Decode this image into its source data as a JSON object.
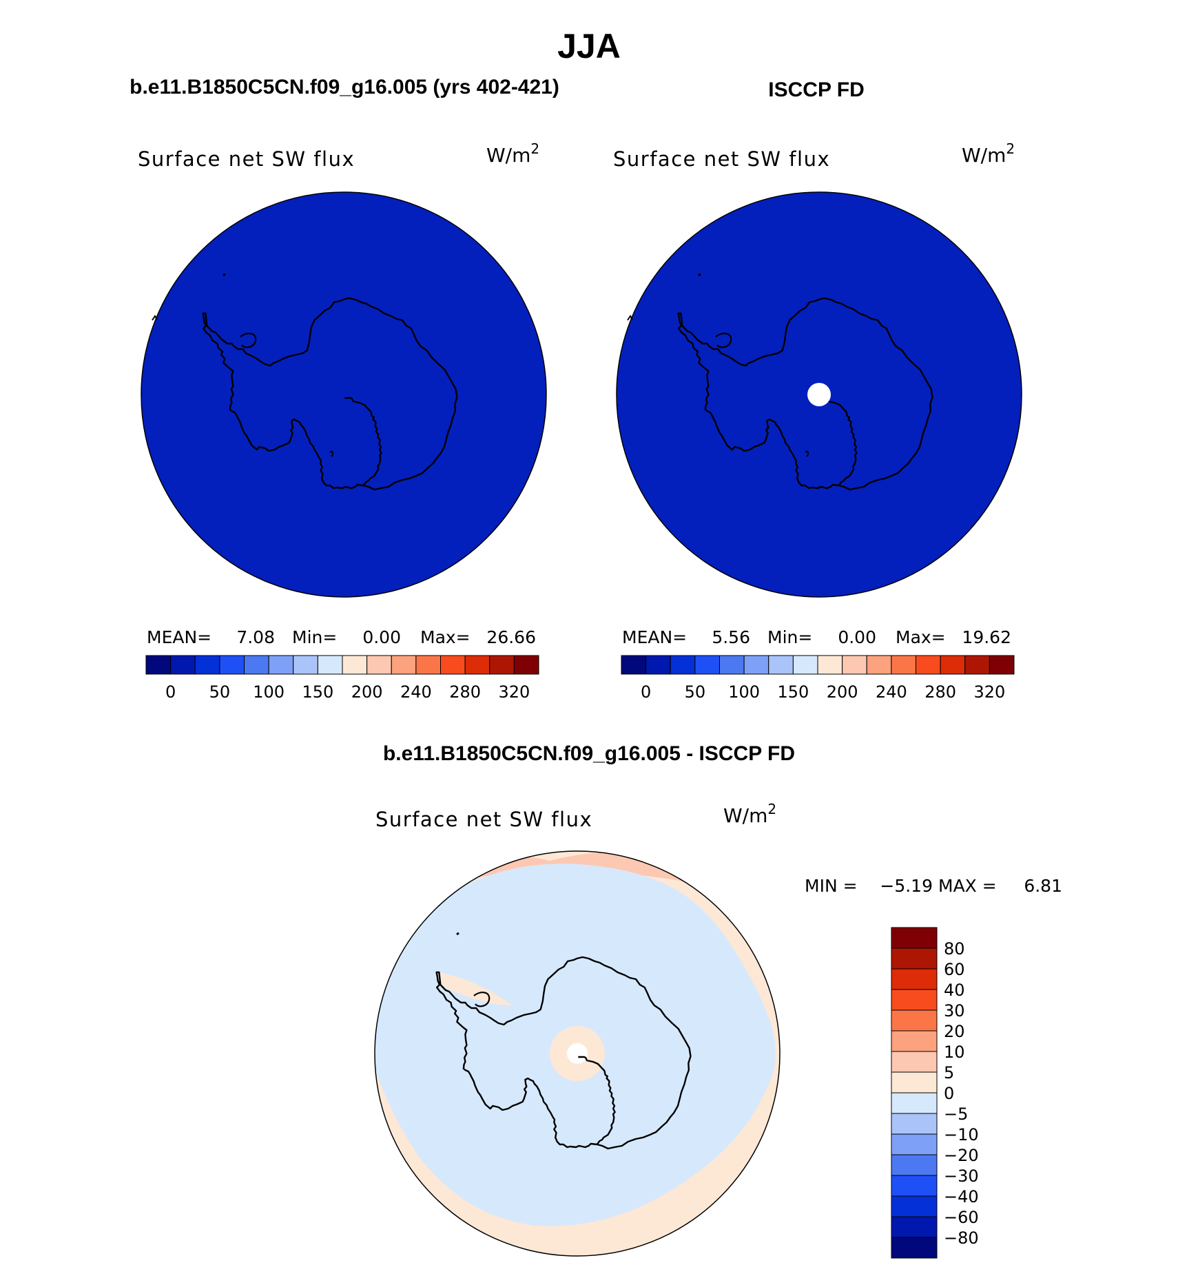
{
  "page": {
    "title": "JJA",
    "diff_title": "b.e11.B1850C5CN.f09_g16.005 - ISCCP FD"
  },
  "colors": {
    "abs_levels": [
      "#00087c",
      "#0018ae",
      "#0430d8",
      "#1e50f6",
      "#4c78f2",
      "#7ea0f6",
      "#aac4fa",
      "#d6e8fc",
      "#fde8d6",
      "#fcc8b2",
      "#fca27e",
      "#fa7648",
      "#f84c1e",
      "#dc2c08",
      "#ae1604",
      "#7e0004"
    ],
    "diff_levels": [
      "#00087c",
      "#0018ae",
      "#0430d8",
      "#1e50f6",
      "#4c78f2",
      "#7ea0f6",
      "#aac4fa",
      "#d6e8fc",
      "#fde8d6",
      "#fcc8b2",
      "#fca27e",
      "#fa7648",
      "#f84c1e",
      "#dc2c08",
      "#ae1604",
      "#7e0004"
    ],
    "ocean_fill": "#0320bd",
    "diff_land_fill": "#d6e8fc",
    "diff_ocean_fill": "#fde8d6"
  },
  "panels": [
    {
      "heading": "b.e11.B1850C5CN.f09_g16.005 (yrs 402-421)",
      "field": "Surface net SW flux",
      "unit_base": "W/m",
      "unit_exp": "2",
      "mean_label": "MEAN=",
      "mean": "7.08",
      "min_label": "Min=",
      "min": "0.00",
      "max_label": "Max=",
      "max": "26.66",
      "ticks": [
        "0",
        "50",
        "100",
        "150",
        "200",
        "240",
        "280",
        "320"
      ]
    },
    {
      "heading": "ISCCP FD",
      "field": "Surface net SW flux",
      "unit_base": "W/m",
      "unit_exp": "2",
      "mean_label": "MEAN=",
      "mean": "5.56",
      "min_label": "Min=",
      "min": "0.00",
      "max_label": "Max=",
      "max": "19.62",
      "ticks": [
        "0",
        "50",
        "100",
        "150",
        "200",
        "240",
        "280",
        "320"
      ]
    }
  ],
  "diff": {
    "field": "Surface net SW flux",
    "unit_base": "W/m",
    "unit_exp": "2",
    "min_label": "MIN =",
    "min": "−5.19",
    "max_label": "MAX =",
    "max": "6.81",
    "ticks": [
      "80",
      "60",
      "40",
      "30",
      "20",
      "10",
      "5",
      "0",
      "−5",
      "−10",
      "−20",
      "−30",
      "−40",
      "−60",
      "−80"
    ]
  }
}
